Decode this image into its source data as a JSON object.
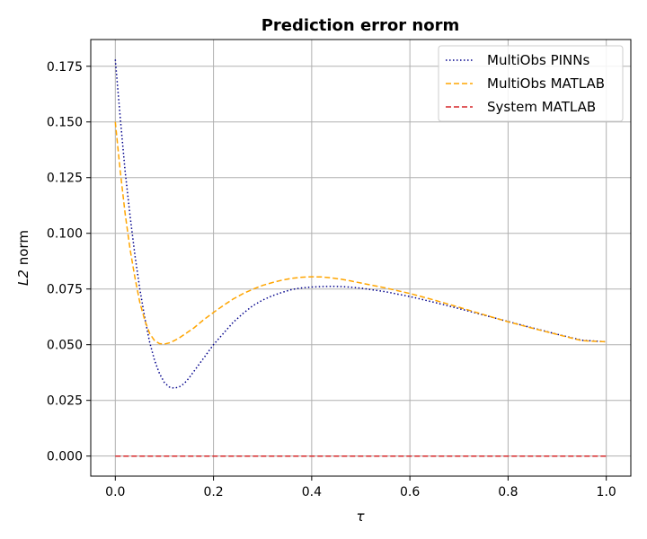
{
  "chart_data": {
    "type": "line",
    "title": "Prediction error norm",
    "xlabel": "τ",
    "ylabel_italic": "L2",
    "ylabel_rest": " norm",
    "xlim": [
      -0.05,
      1.05
    ],
    "ylim": [
      -0.009,
      0.187
    ],
    "xticks": [
      0.0,
      0.2,
      0.4,
      0.6,
      0.8,
      1.0
    ],
    "xtick_labels": [
      "0.0",
      "0.2",
      "0.4",
      "0.6",
      "0.8",
      "1.0"
    ],
    "yticks": [
      0.0,
      0.025,
      0.05,
      0.075,
      0.1,
      0.125,
      0.15,
      0.175
    ],
    "ytick_labels": [
      "0.000",
      "0.025",
      "0.050",
      "0.075",
      "0.100",
      "0.125",
      "0.150",
      "0.175"
    ],
    "grid": true,
    "legend_position": "top-right",
    "series": [
      {
        "name": "MultiObs PINNs",
        "color": "#00008b",
        "style": "dotted",
        "x": [
          0.0,
          0.01,
          0.02,
          0.03,
          0.04,
          0.05,
          0.06,
          0.07,
          0.08,
          0.09,
          0.1,
          0.11,
          0.12,
          0.13,
          0.14,
          0.15,
          0.16,
          0.17,
          0.18,
          0.19,
          0.2,
          0.22,
          0.24,
          0.26,
          0.28,
          0.3,
          0.32,
          0.34,
          0.36,
          0.38,
          0.4,
          0.42,
          0.44,
          0.46,
          0.48,
          0.5,
          0.55,
          0.6,
          0.65,
          0.7,
          0.75,
          0.8,
          0.85,
          0.9,
          0.95,
          1.0
        ],
        "values": [
          0.178,
          0.152,
          0.128,
          0.108,
          0.09,
          0.075,
          0.062,
          0.051,
          0.043,
          0.037,
          0.033,
          0.031,
          0.0305,
          0.031,
          0.0325,
          0.035,
          0.038,
          0.041,
          0.044,
          0.047,
          0.05,
          0.055,
          0.06,
          0.064,
          0.0675,
          0.07,
          0.072,
          0.0735,
          0.0748,
          0.0755,
          0.0759,
          0.0761,
          0.0762,
          0.0761,
          0.0758,
          0.0754,
          0.0738,
          0.0716,
          0.069,
          0.0662,
          0.0633,
          0.0604,
          0.0575,
          0.0547,
          0.052,
          0.0513
        ]
      },
      {
        "name": "MultiObs MATLAB",
        "color": "#ffa500",
        "style": "dashed",
        "x": [
          0.0,
          0.01,
          0.02,
          0.03,
          0.04,
          0.05,
          0.06,
          0.07,
          0.08,
          0.09,
          0.1,
          0.11,
          0.12,
          0.13,
          0.14,
          0.15,
          0.16,
          0.18,
          0.2,
          0.22,
          0.24,
          0.26,
          0.28,
          0.3,
          0.32,
          0.34,
          0.36,
          0.38,
          0.4,
          0.42,
          0.44,
          0.46,
          0.48,
          0.5,
          0.55,
          0.6,
          0.65,
          0.7,
          0.75,
          0.8,
          0.85,
          0.9,
          0.95,
          1.0
        ],
        "values": [
          0.15,
          0.128,
          0.109,
          0.093,
          0.08,
          0.069,
          0.061,
          0.055,
          0.0518,
          0.0505,
          0.0503,
          0.0508,
          0.0518,
          0.053,
          0.0545,
          0.056,
          0.0575,
          0.0612,
          0.0645,
          0.0676,
          0.0705,
          0.0729,
          0.0749,
          0.0766,
          0.0779,
          0.079,
          0.0798,
          0.0803,
          0.0805,
          0.0804,
          0.08,
          0.0794,
          0.0786,
          0.0777,
          0.0755,
          0.073,
          0.07,
          0.0668,
          0.0635,
          0.0603,
          0.0574,
          0.0546,
          0.0518,
          0.0513
        ]
      },
      {
        "name": "System MATLAB",
        "color": "#d62728",
        "style": "dashed",
        "x": [
          0.0,
          1.0
        ],
        "values": [
          0.0,
          0.0
        ]
      }
    ]
  }
}
